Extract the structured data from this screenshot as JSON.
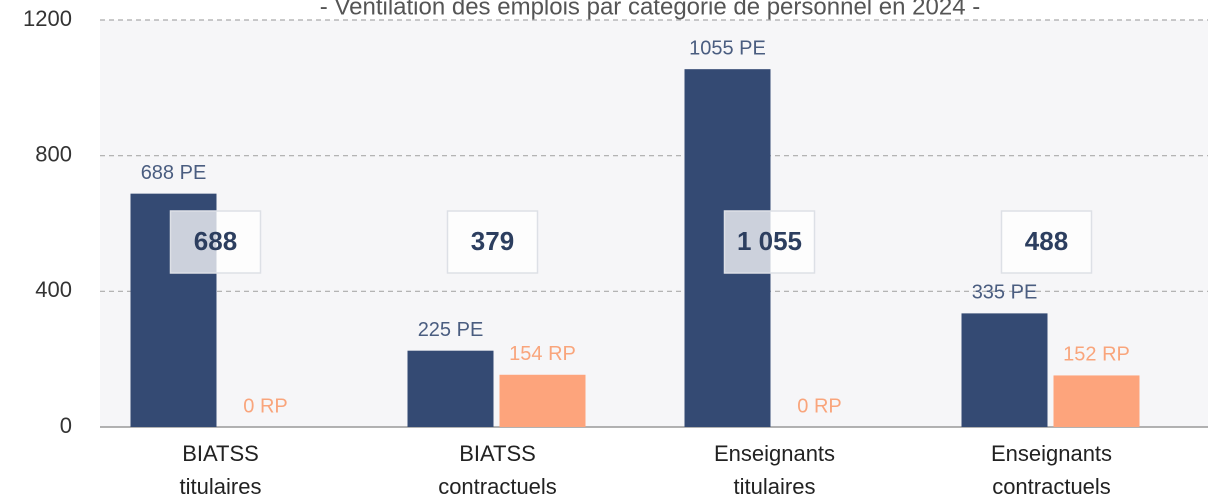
{
  "chart_data": {
    "type": "bar",
    "title": "- Ventilation des emplois par catégorie de personnel en 2024 -",
    "categories": [
      [
        "BIATSS",
        "titulaires"
      ],
      [
        "BIATSS",
        "contractuels"
      ],
      [
        "Enseignants",
        "titulaires"
      ],
      [
        "Enseignants",
        "contractuels"
      ]
    ],
    "series": [
      {
        "color": "#344a73",
        "label_color": "#4a5d80",
        "values": [
          688,
          225,
          1055,
          335
        ],
        "value_labels": [
          "688 PE",
          "225 PE",
          "1055 PE",
          "335 PE"
        ]
      },
      {
        "color": "#fda47c",
        "label_color": "#f9a57c",
        "values": [
          0,
          154,
          0,
          152
        ],
        "value_labels": [
          "0 RP",
          "154 RP",
          "0 RP",
          "152 RP"
        ]
      }
    ],
    "total_labels": [
      "688",
      "379",
      "1 055",
      "488"
    ],
    "ylim": [
      0,
      1200
    ],
    "yticks": [
      0,
      400,
      800,
      1200
    ],
    "grid": true
  }
}
